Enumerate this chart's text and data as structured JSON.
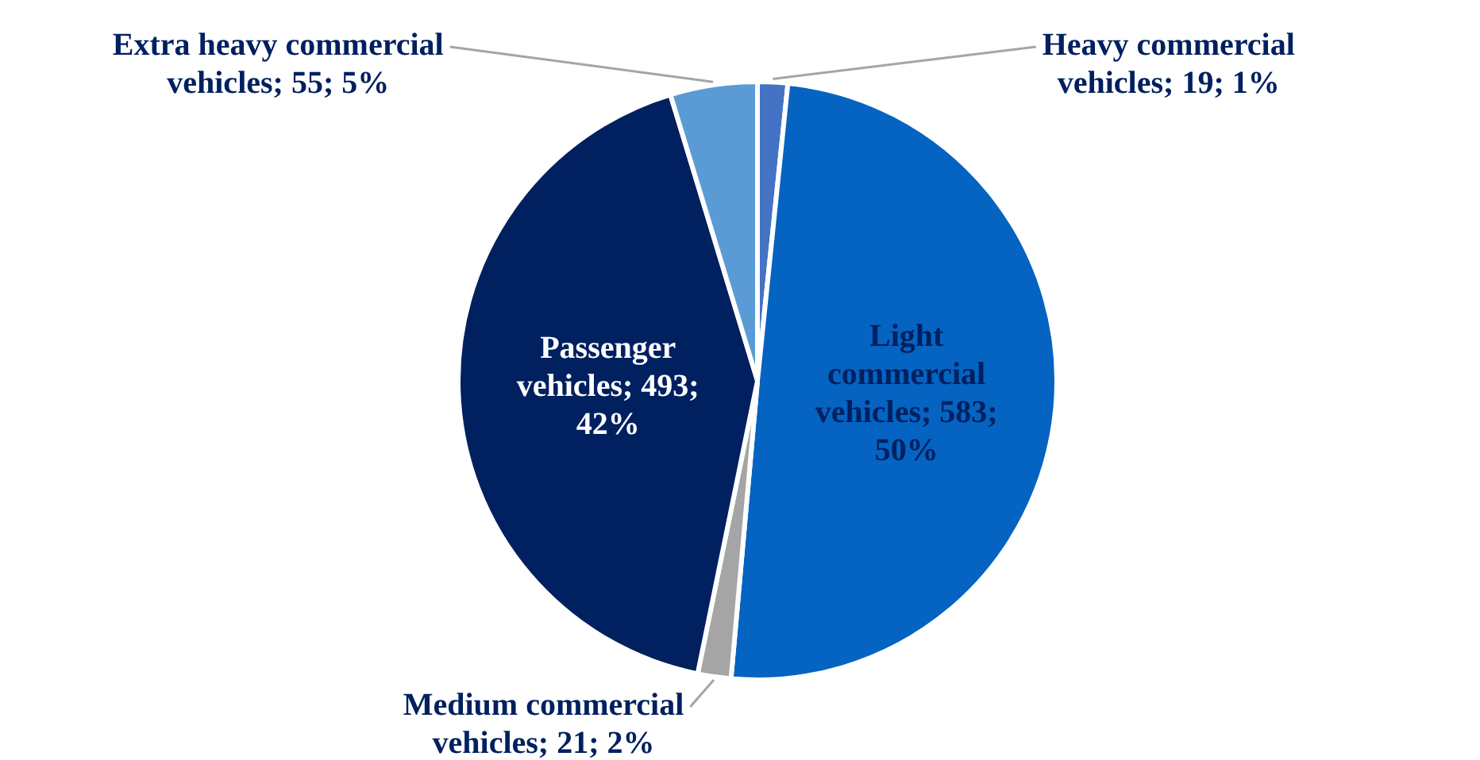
{
  "chart_data": {
    "type": "pie",
    "categories": [
      "Heavy commercial vehicles",
      "Light commercial vehicles",
      "Medium commercial vehicles",
      "Passenger vehicles",
      "Extra heavy commercial vehicles"
    ],
    "values": [
      19,
      583,
      21,
      493,
      55
    ],
    "colors": [
      "#4472c4",
      "#0563c1",
      "#a5a5a5",
      "#002060",
      "#5b9bd5"
    ],
    "value_labels": [
      "19; 1%",
      "583; 50%",
      "21; 2%",
      "493; 42%",
      "55; 5%"
    ],
    "legend": false
  }
}
